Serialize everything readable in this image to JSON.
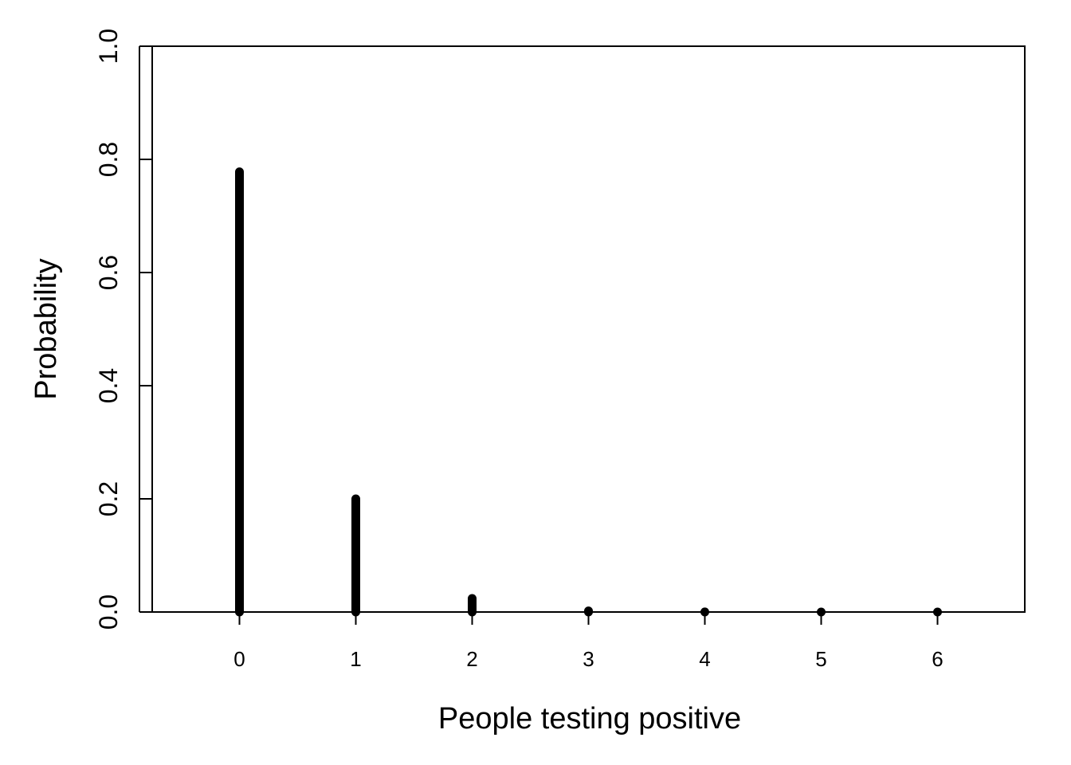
{
  "chart_data": {
    "type": "bar",
    "style": "spike",
    "title": "",
    "xlabel": "People testing positive",
    "ylabel": "Probability",
    "x": [
      0,
      1,
      2,
      3,
      4,
      5,
      6
    ],
    "values": [
      0.778,
      0.2,
      0.024,
      0.002,
      0.0001,
      0.0,
      0.0
    ],
    "xlim": [
      -0.75,
      6.75
    ],
    "ylim": [
      0,
      1
    ],
    "x_ticks": [
      "0",
      "1",
      "2",
      "3",
      "4",
      "5",
      "6"
    ],
    "y_ticks": [
      "0.0",
      "0.2",
      "0.4",
      "0.6",
      "0.8",
      "1.0"
    ],
    "grid": false,
    "color": "#000000"
  }
}
